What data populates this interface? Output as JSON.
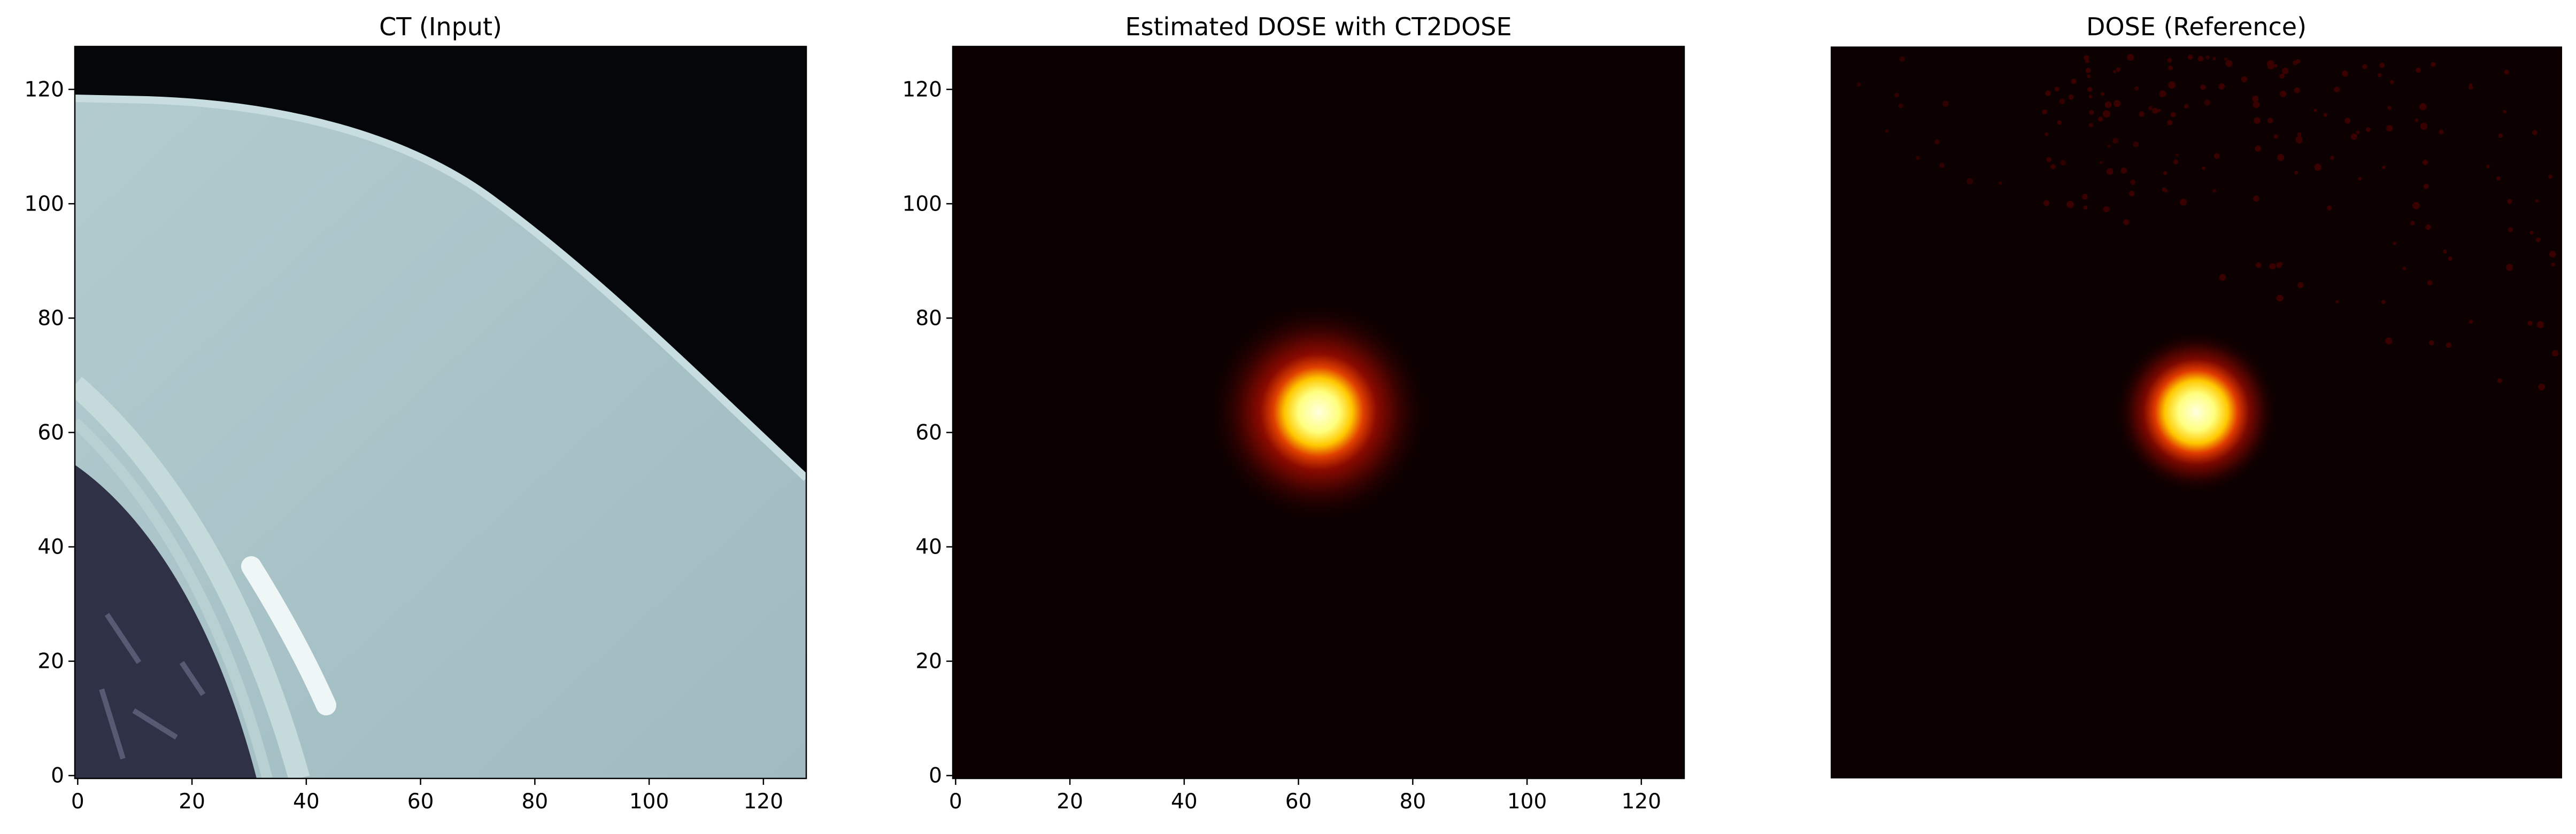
{
  "figure": {
    "panels": [
      {
        "title": "CT (Input)",
        "show_axes": true
      },
      {
        "title": "Estimated DOSE with CT2DOSE",
        "show_axes": true
      },
      {
        "title": "DOSE (Reference)",
        "show_axes": false
      }
    ]
  },
  "chart_data": [
    {
      "type": "heatmap",
      "title": "CT (Input)",
      "xlabel": "",
      "ylabel": "",
      "xlim": [
        -0.5,
        127.5
      ],
      "ylim": [
        127.5,
        -0.5
      ],
      "xticks": [
        0,
        20,
        40,
        60,
        80,
        100,
        120
      ],
      "yticks": [
        0,
        20,
        40,
        60,
        80,
        100,
        120
      ],
      "colormap": "bone",
      "colors": {
        "background": "#05060a",
        "bone": "#a9c4c8",
        "bone_edge": "#c7dcde",
        "lung": "#2f3147",
        "highlight": "#eef6f6"
      },
      "grid": false
    },
    {
      "type": "heatmap",
      "title": "Estimated DOSE with CT2DOSE",
      "xlabel": "",
      "ylabel": "",
      "xlim": [
        -0.5,
        127.5
      ],
      "ylim": [
        127.5,
        -0.5
      ],
      "xticks": [
        0,
        20,
        40,
        60,
        80,
        100,
        120
      ],
      "yticks": [
        0,
        20,
        40,
        60,
        80,
        100,
        120
      ],
      "colormap": "hot",
      "peak_center": [
        63,
        63
      ],
      "colors": {
        "background": "#0c0000",
        "core": "#ffffe0",
        "mid": "#ffc800",
        "outer": "#c81400"
      },
      "grid": false
    },
    {
      "type": "heatmap",
      "title": "DOSE (Reference)",
      "xlabel": "",
      "ylabel": "",
      "axes_visible": false,
      "colormap": "hot",
      "peak_center": [
        63,
        63
      ],
      "colors": {
        "background": "#0c0000",
        "core": "#ffffe0",
        "mid": "#ffc800",
        "outer": "#c81400",
        "speckle": "#3a0000"
      },
      "grid": false
    }
  ]
}
